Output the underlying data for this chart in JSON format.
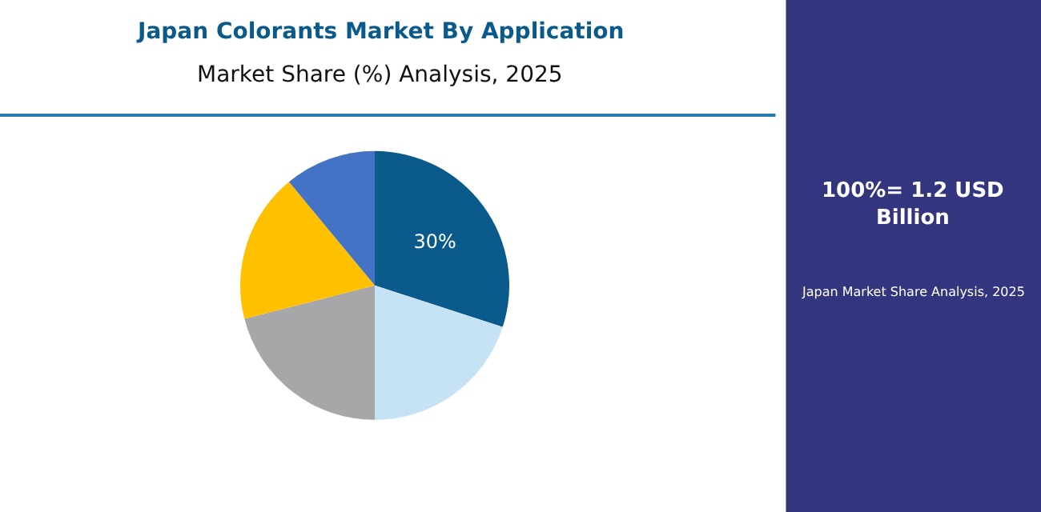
{
  "chart_data": {
    "type": "pie",
    "title": "Japan Colorants Market By Application",
    "subtitle": "Market Share (%) Analysis, 2025",
    "categories": [
      null,
      null,
      null,
      null,
      null
    ],
    "values": [
      30,
      20,
      21,
      18,
      11
    ],
    "colors": [
      "#0b5a8c",
      "#c6e2f5",
      "#a7a7a9",
      "#ffc000",
      "#4472c4"
    ],
    "value_labels": [
      "30%",
      null,
      null,
      null,
      null
    ],
    "annotations": [
      "100%= 1.2 USD Billion",
      "Japan Market Share Analysis, 2025"
    ],
    "legend": false
  }
}
